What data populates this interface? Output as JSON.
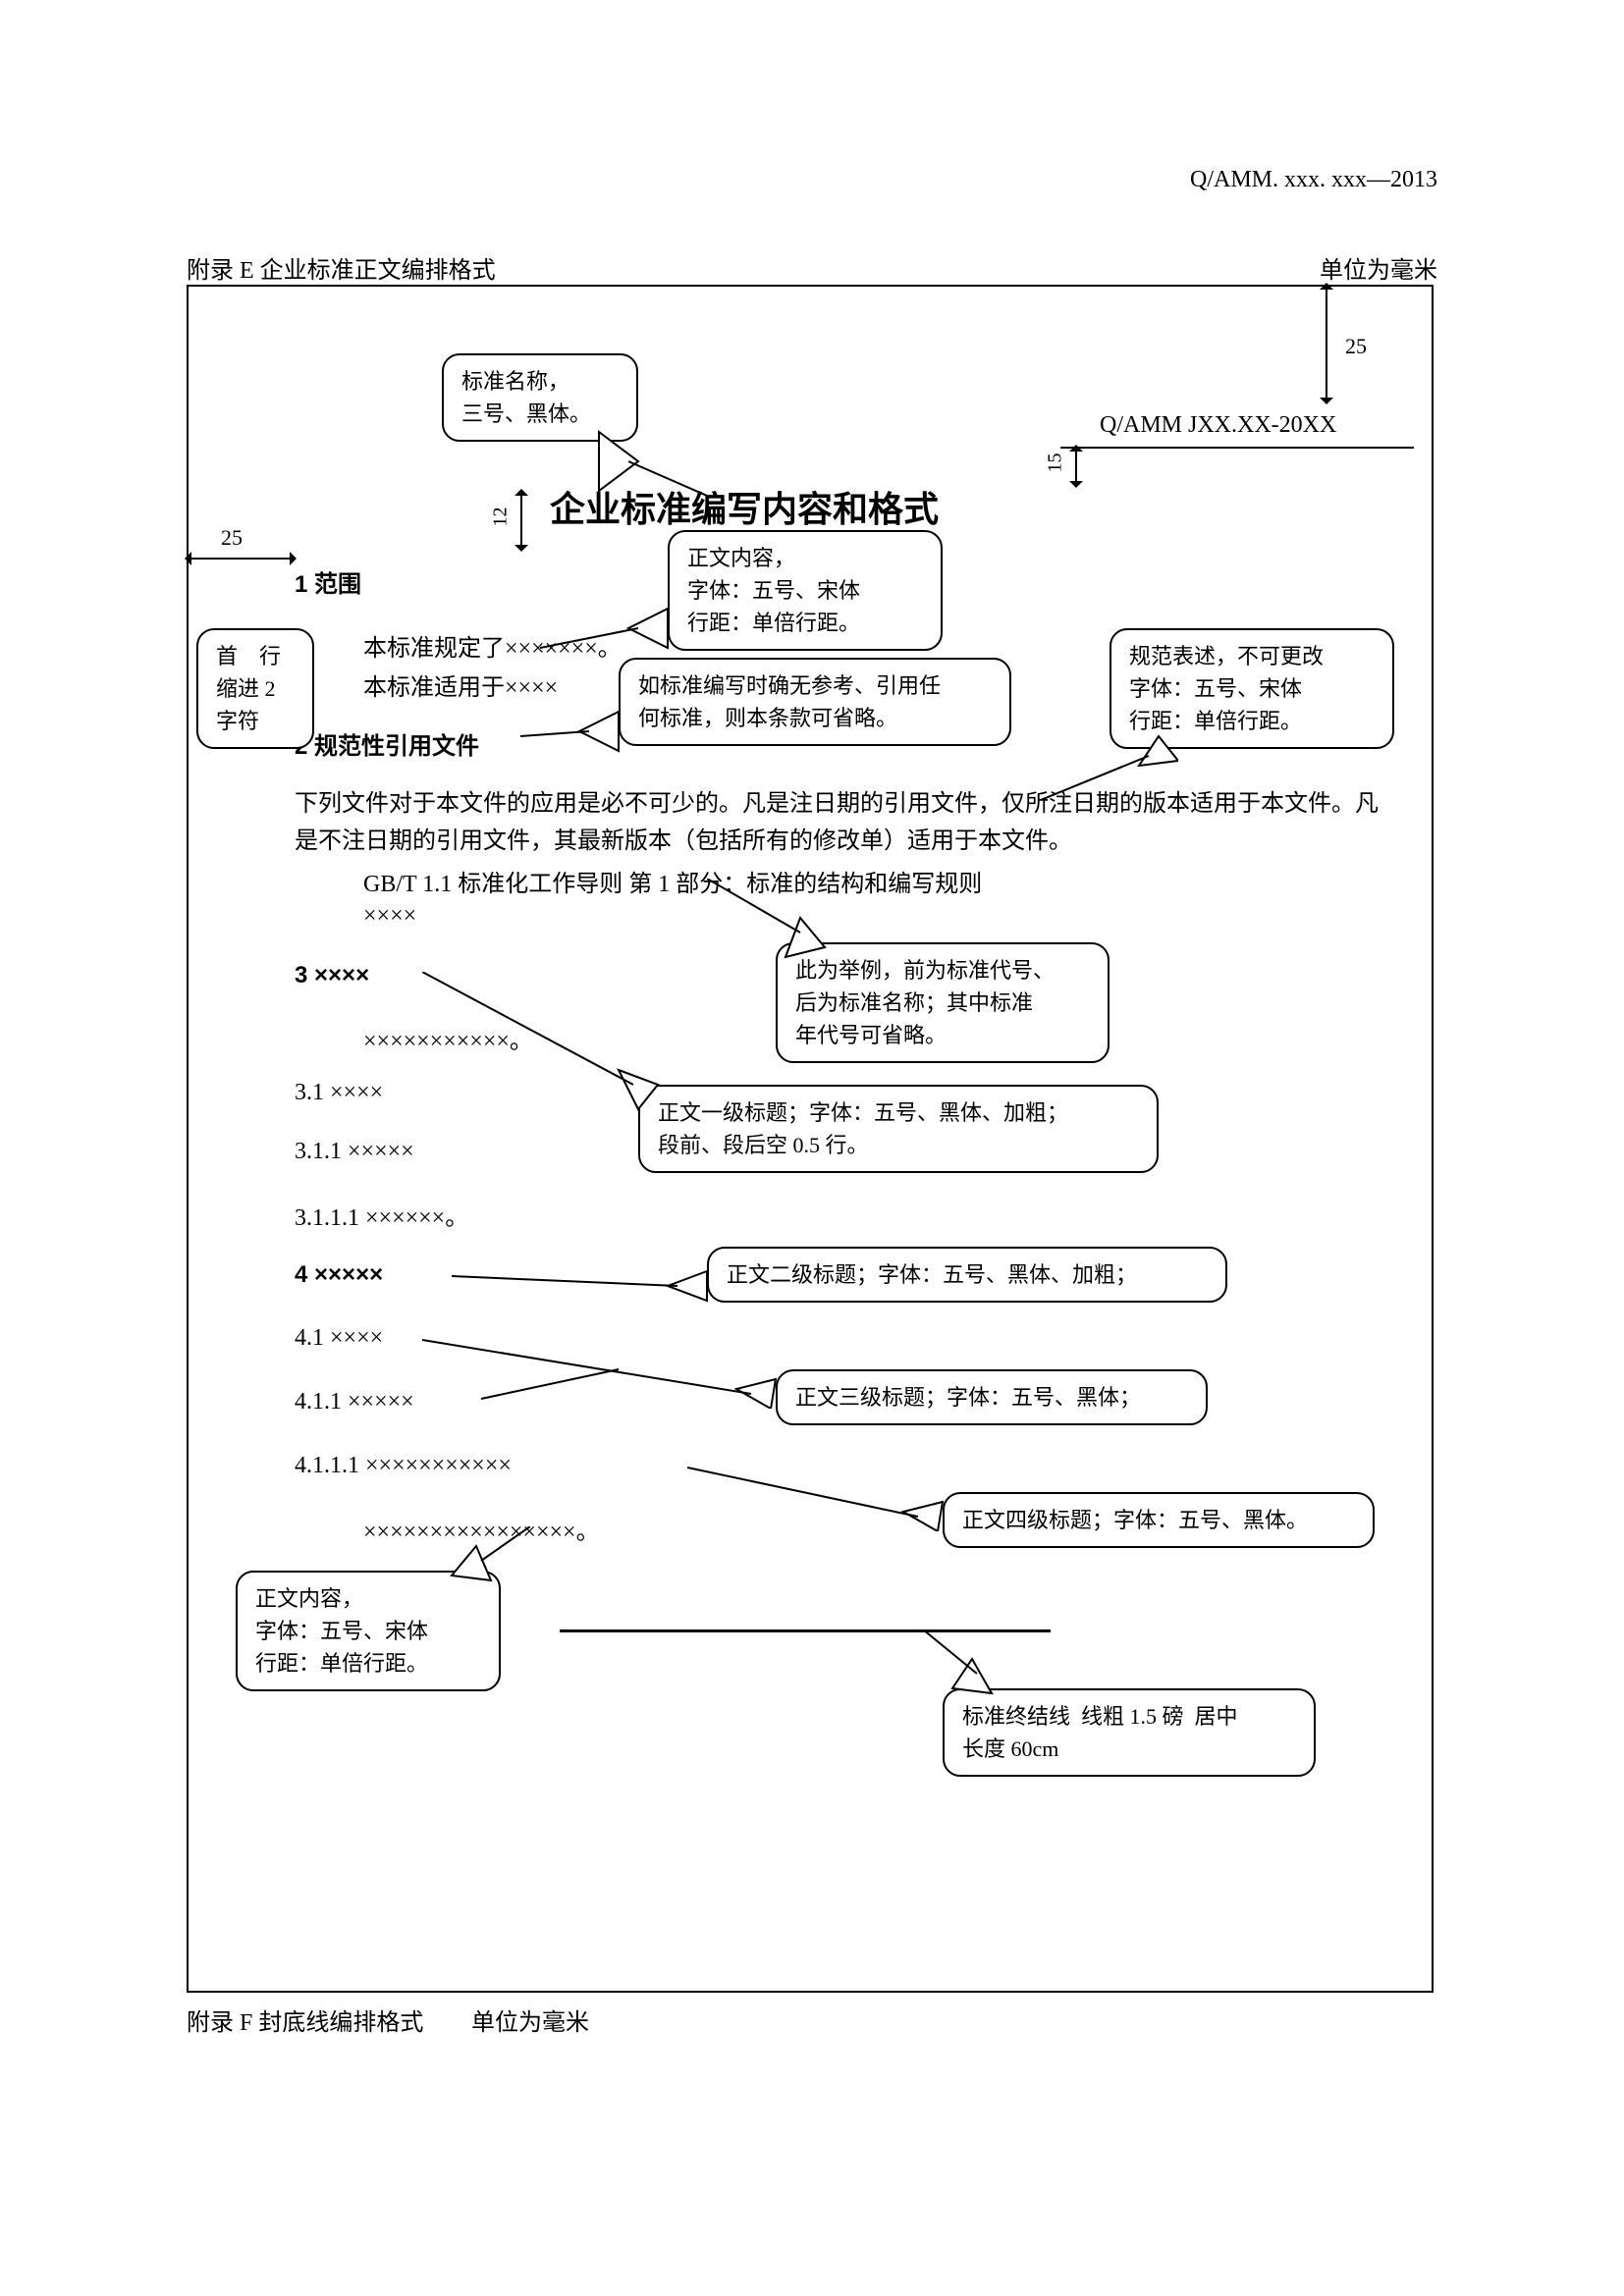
{
  "header": {
    "doc_ref": "Q/AMM. xxx. xxx—2013"
  },
  "appendix_e": "附录 E  企业标准正文编排格式",
  "unit_top": "单位为毫米",
  "appendix_f": "附录 F 封底线编排格式",
  "unit_bot": "单位为毫米",
  "dims": {
    "top_margin": "25",
    "header_gap": "15",
    "title_gap": "12",
    "left_margin": "25"
  },
  "doc_code": "Q/AMM JXX.XX-20XX",
  "main_title": "企业标准编写内容和格式",
  "sections": {
    "s1": "1  范围",
    "l1": "本标准规定了×××××××。",
    "l2": "本标准适用于××××",
    "s2": "2  规范性引用文件",
    "p2": "下列文件对于本文件的应用是必不可少的。凡是注日期的引用文件，仅所注日期的版本适用于本文件。凡是不注日期的引用文件，其最新版本（包括所有的修改单）适用于本文件。",
    "gbt": "GB/T 1.1   标准化工作导则   第 1 部分：标准的结构和编写规则",
    "xxxx": "××××",
    "s3": "3  ××××",
    "s3b": "×××××××××××。",
    "s31": "3.1  ××××",
    "s311": "3.1.1  ×××××",
    "s3111": "3.1.1.1  ××××××。",
    "s4": "4  ×××××",
    "s41": "4.1  ××××",
    "s411": "4.1.1  ×××××",
    "s4111": "4.1.1.1  ×××××××××××",
    "bl": "××××××××××××××××。"
  },
  "callouts": {
    "c_title": "标准名称，\n三号、黑体。",
    "c_body": "正文内容，\n字体：五号、宋体\n行距：单倍行距。",
    "c_indent": "首　行\n缩进 2\n字符",
    "c_omit": "如标准编写时确无参考、引用任\n何标准，则本条款可省略。",
    "c_normative": "规范表述，不可更改\n字体：五号、宋体\n行距：单倍行距。",
    "c_example": "此为举例，前为标准代号、\n后为标准名称；其中标准\n年代号可省略。",
    "c_h1": "正文一级标题；字体：五号、黑体、加粗；\n段前、段后空 0.5 行。",
    "c_h2": "正文二级标题；字体：五号、黑体、加粗；",
    "c_h3": "正文三级标题；字体：五号、黑体；",
    "c_h4": "正文四级标题；字体：五号、黑体。",
    "c_body2": "正文内容，\n字体：五号、宋体\n行距：单倍行距。",
    "c_endline": "标准终结线  线粗 1.5 磅  居中\n长度 60cm"
  },
  "colors": {
    "text": "#000000",
    "bg": "#ffffff",
    "border": "#000000"
  }
}
